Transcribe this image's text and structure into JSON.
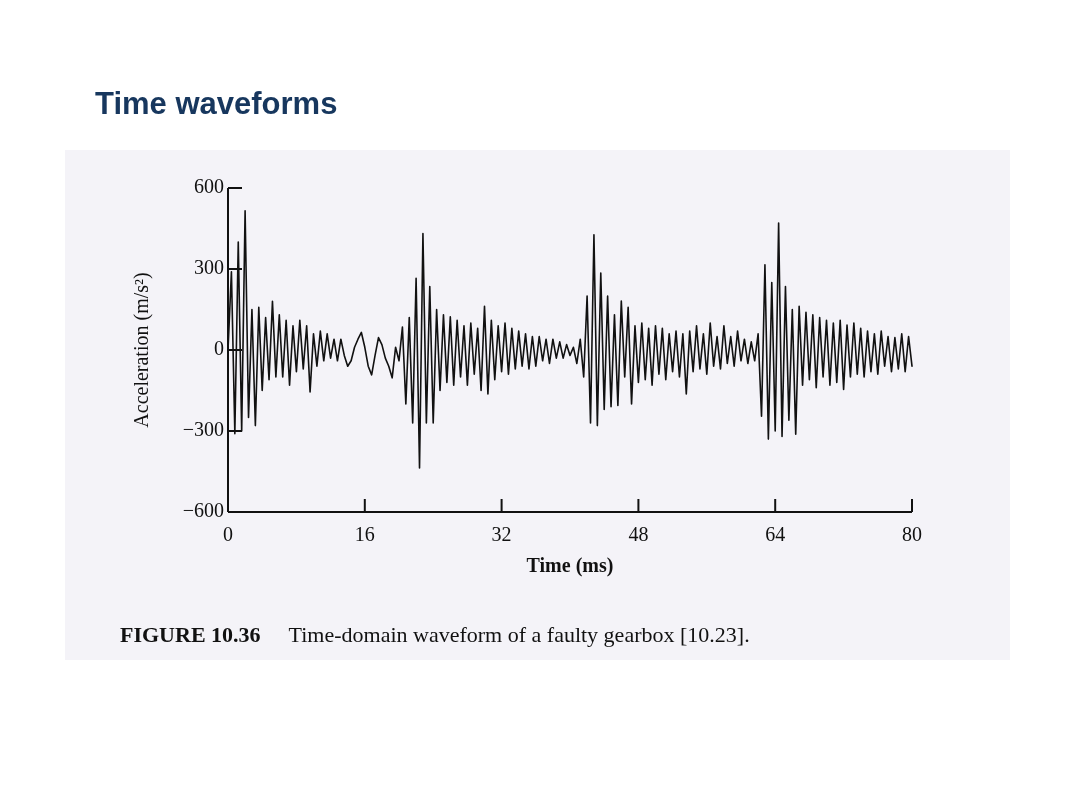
{
  "chart_data": {
    "type": "line",
    "title": "Time waveforms",
    "xlabel": "Time (ms)",
    "ylabel": "Acceleration (m/s²)",
    "annotations": [
      "FIGURE 10.36",
      "Time-domain waveform of a faulty gearbox [10.23]."
    ],
    "xlim": [
      0,
      80
    ],
    "ylim": [
      -600,
      600
    ],
    "xticks": [
      0,
      16,
      32,
      48,
      64,
      80
    ],
    "yticks": [
      -600,
      -300,
      0,
      300,
      600
    ],
    "x": [
      0,
      0.4,
      0.8,
      1.2,
      1.6,
      2,
      2.4,
      2.8,
      3.2,
      3.6,
      4,
      4.4,
      4.8,
      5.2,
      5.6,
      6,
      6.4,
      6.8,
      7.2,
      7.6,
      8,
      8.4,
      8.8,
      9.2,
      9.6,
      10,
      10.4,
      10.8,
      11.2,
      11.6,
      12,
      12.4,
      12.8,
      13.2,
      13.6,
      14,
      14.4,
      14.8,
      15.2,
      15.6,
      16,
      16.4,
      16.8,
      17.2,
      17.6,
      18,
      18.4,
      18.8,
      19.2,
      19.6,
      20,
      20.4,
      20.8,
      21.2,
      21.6,
      22,
      22.4,
      22.8,
      23.2,
      23.6,
      24,
      24.4,
      24.8,
      25.2,
      25.6,
      26,
      26.4,
      26.8,
      27.2,
      27.6,
      28,
      28.4,
      28.8,
      29.2,
      29.6,
      30,
      30.4,
      30.8,
      31.2,
      31.6,
      32,
      32.4,
      32.8,
      33.2,
      33.6,
      34,
      34.4,
      34.8,
      35.2,
      35.6,
      36,
      36.4,
      36.8,
      37.2,
      37.6,
      38,
      38.4,
      38.8,
      39.2,
      39.6,
      40,
      40.4,
      40.8,
      41.2,
      41.6,
      42,
      42.4,
      42.8,
      43.2,
      43.6,
      44,
      44.4,
      44.8,
      45.2,
      45.6,
      46,
      46.4,
      46.8,
      47.2,
      47.6,
      48,
      48.4,
      48.8,
      49.2,
      49.6,
      50,
      50.4,
      50.8,
      51.2,
      51.6,
      52,
      52.4,
      52.8,
      53.2,
      53.6,
      54,
      54.4,
      54.8,
      55.2,
      55.6,
      56,
      56.4,
      56.8,
      57.2,
      57.6,
      58,
      58.4,
      58.8,
      59.2,
      59.6,
      60,
      60.4,
      60.8,
      61.2,
      61.6,
      62,
      62.4,
      62.8,
      63.2,
      63.6,
      64,
      64.4,
      64.8,
      65.2,
      65.6,
      66,
      66.4,
      66.8,
      67.2,
      67.6,
      68,
      68.4,
      68.8,
      69.2,
      69.6,
      70,
      70.4,
      70.8,
      71.2,
      71.6,
      72,
      72.4,
      72.8,
      73.2,
      73.6,
      74,
      74.4,
      74.8,
      75.2,
      75.6,
      76,
      76.4,
      76.8,
      77.2,
      77.6,
      78,
      78.4,
      78.8,
      79.2,
      79.6,
      80
    ],
    "series": [
      {
        "color": "#111111",
        "values": [
          0,
          290,
          -310,
          400,
          -300,
          516,
          -250,
          150,
          -280,
          158,
          -150,
          120,
          -110,
          180,
          -100,
          130,
          -100,
          110,
          -130,
          90,
          -80,
          110,
          -70,
          90,
          -155,
          60,
          -60,
          70,
          -40,
          60,
          -30,
          40,
          -40,
          40,
          -20,
          -60,
          -40,
          10,
          40,
          65,
          10,
          -60,
          -92,
          -20,
          46,
          20,
          -30,
          -60,
          -103,
          10,
          -40,
          85,
          -200,
          120,
          -270,
          266,
          -437,
          431,
          -270,
          235,
          -270,
          150,
          -150,
          130,
          -120,
          123,
          -130,
          110,
          -100,
          90,
          -130,
          100,
          -90,
          80,
          -150,
          162,
          -163,
          110,
          -110,
          90,
          -80,
          100,
          -90,
          80,
          -70,
          70,
          -60,
          60,
          -70,
          50,
          -60,
          50,
          -40,
          40,
          -50,
          40,
          -30,
          30,
          -30,
          20,
          -20,
          10,
          -50,
          40,
          -100,
          200,
          -270,
          427,
          -280,
          285,
          -220,
          200,
          -210,
          130,
          -205,
          181,
          -100,
          158,
          -200,
          90,
          -120,
          100,
          -110,
          80,
          -130,
          90,
          -90,
          80,
          -110,
          60,
          -80,
          70,
          -100,
          60,
          -163,
          70,
          -80,
          90,
          -70,
          60,
          -90,
          100,
          -60,
          50,
          -70,
          90,
          -50,
          50,
          -60,
          70,
          -40,
          40,
          -50,
          30,
          -40,
          60,
          -245,
          316,
          -330,
          250,
          -300,
          470,
          -320,
          235,
          -260,
          150,
          -312,
          162,
          -130,
          140,
          -110,
          130,
          -140,
          120,
          -100,
          110,
          -130,
          100,
          -120,
          110,
          -146,
          92,
          -100,
          100,
          -90,
          80,
          -100,
          70,
          -80,
          60,
          -90,
          70,
          -60,
          50,
          -80,
          46,
          -70,
          60,
          -80,
          50,
          -60
        ]
      }
    ]
  }
}
